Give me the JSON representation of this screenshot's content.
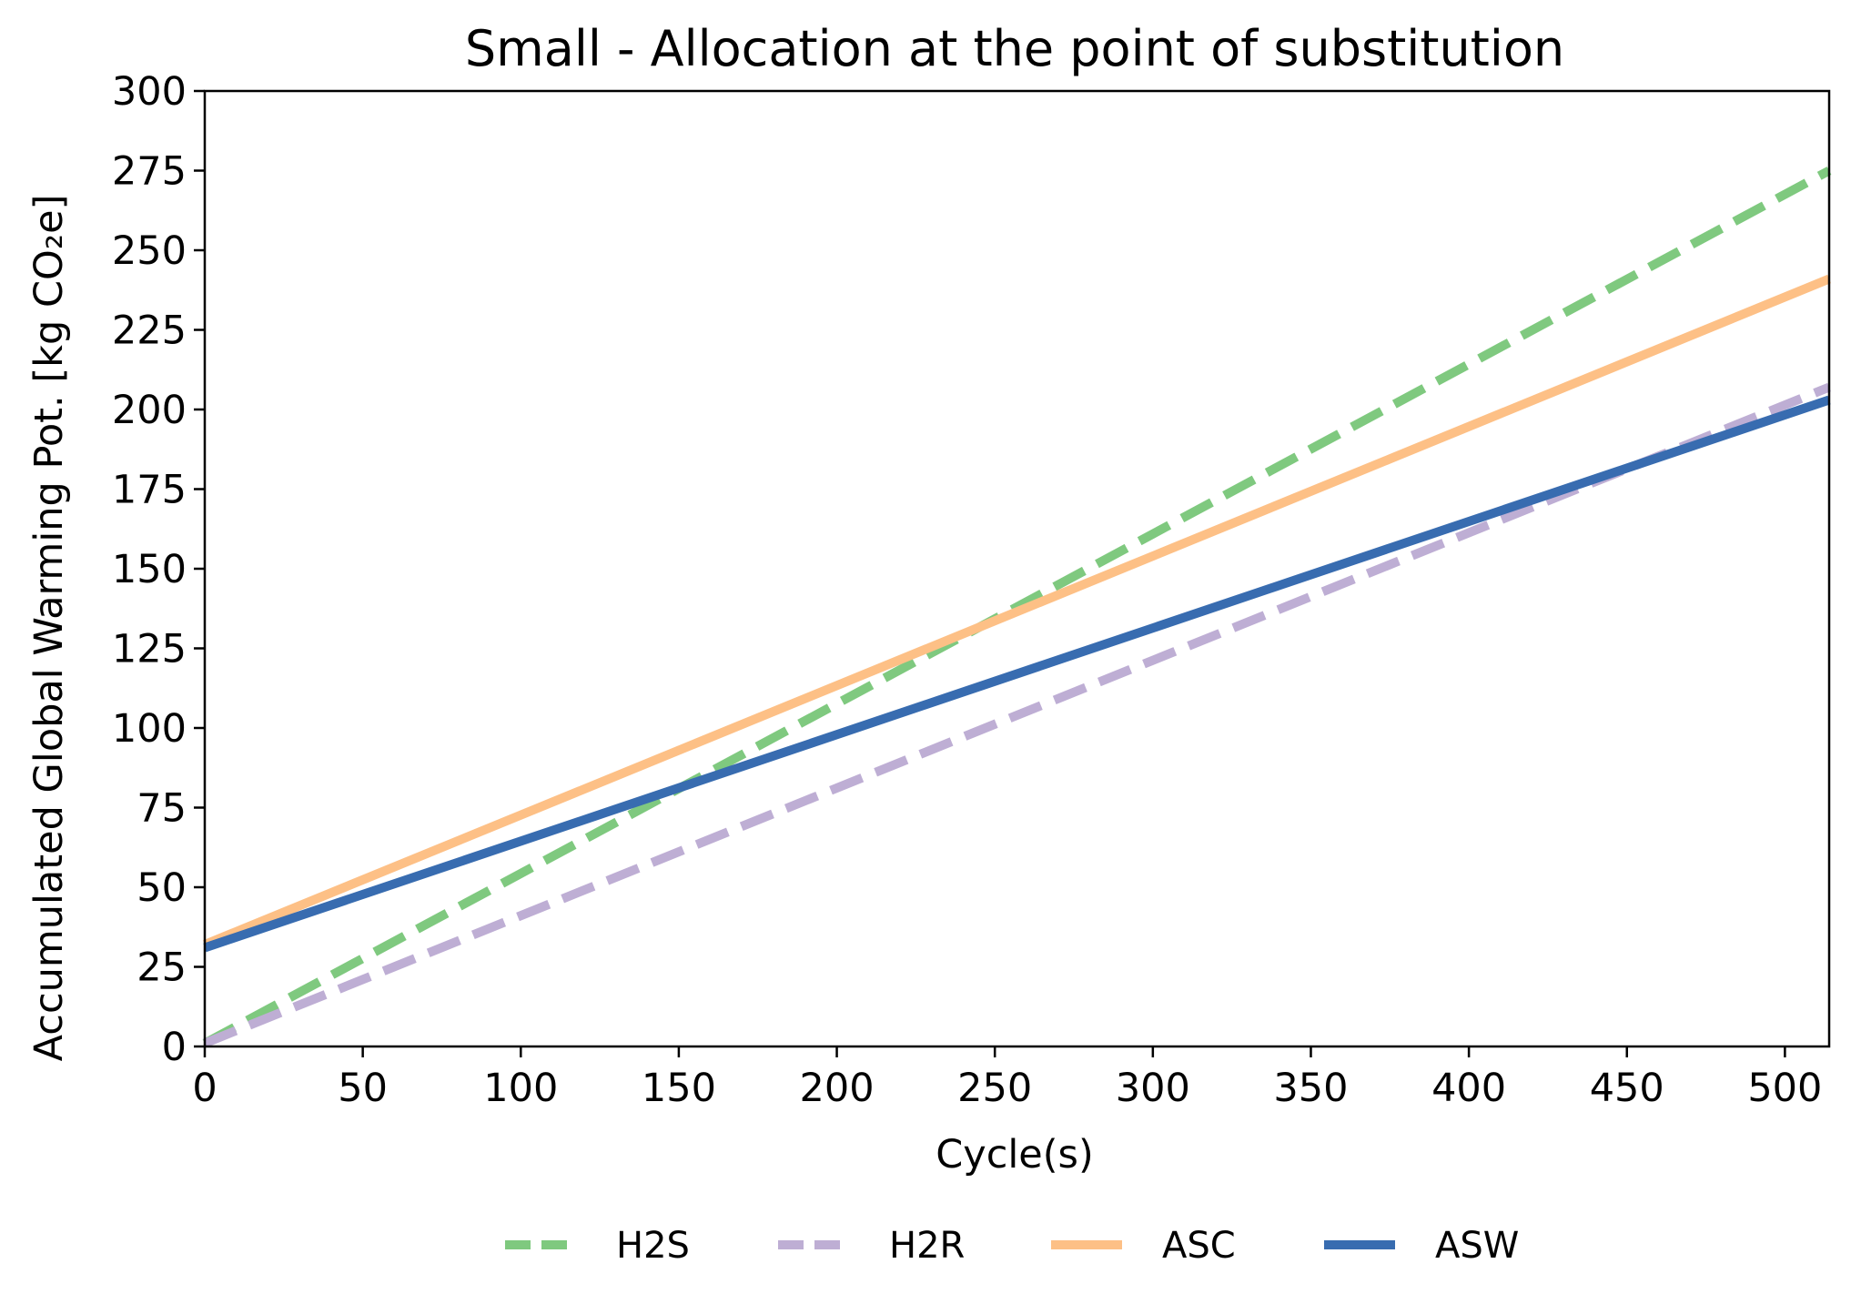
{
  "chart_data": {
    "type": "line",
    "title": "Small - Allocation at the point of substitution",
    "xlabel": "Cycle(s)",
    "ylabel": "Accumulated Global Warming Pot. [kg CO₂e]",
    "xlim": [
      0,
      514
    ],
    "ylim": [
      0,
      300
    ],
    "xticks": [
      0,
      50,
      100,
      150,
      200,
      250,
      300,
      350,
      400,
      450,
      500
    ],
    "yticks": [
      0,
      25,
      50,
      75,
      100,
      125,
      150,
      175,
      200,
      225,
      250,
      275,
      300
    ],
    "grid": false,
    "legend_position": "bottom-center",
    "series": [
      {
        "name": "H2S",
        "color": "#7fc97f",
        "style": "dashed",
        "x": [
          0,
          514
        ],
        "y": [
          1,
          275
        ]
      },
      {
        "name": "H2R",
        "color": "#beaed4",
        "style": "dashed",
        "x": [
          0,
          514
        ],
        "y": [
          1,
          207
        ]
      },
      {
        "name": "ASC",
        "color": "#fdc086",
        "style": "solid",
        "x": [
          0,
          514
        ],
        "y": [
          32,
          241
        ]
      },
      {
        "name": "ASW",
        "color": "#386cb0",
        "style": "solid",
        "x": [
          0,
          514
        ],
        "y": [
          31,
          203
        ]
      }
    ]
  }
}
